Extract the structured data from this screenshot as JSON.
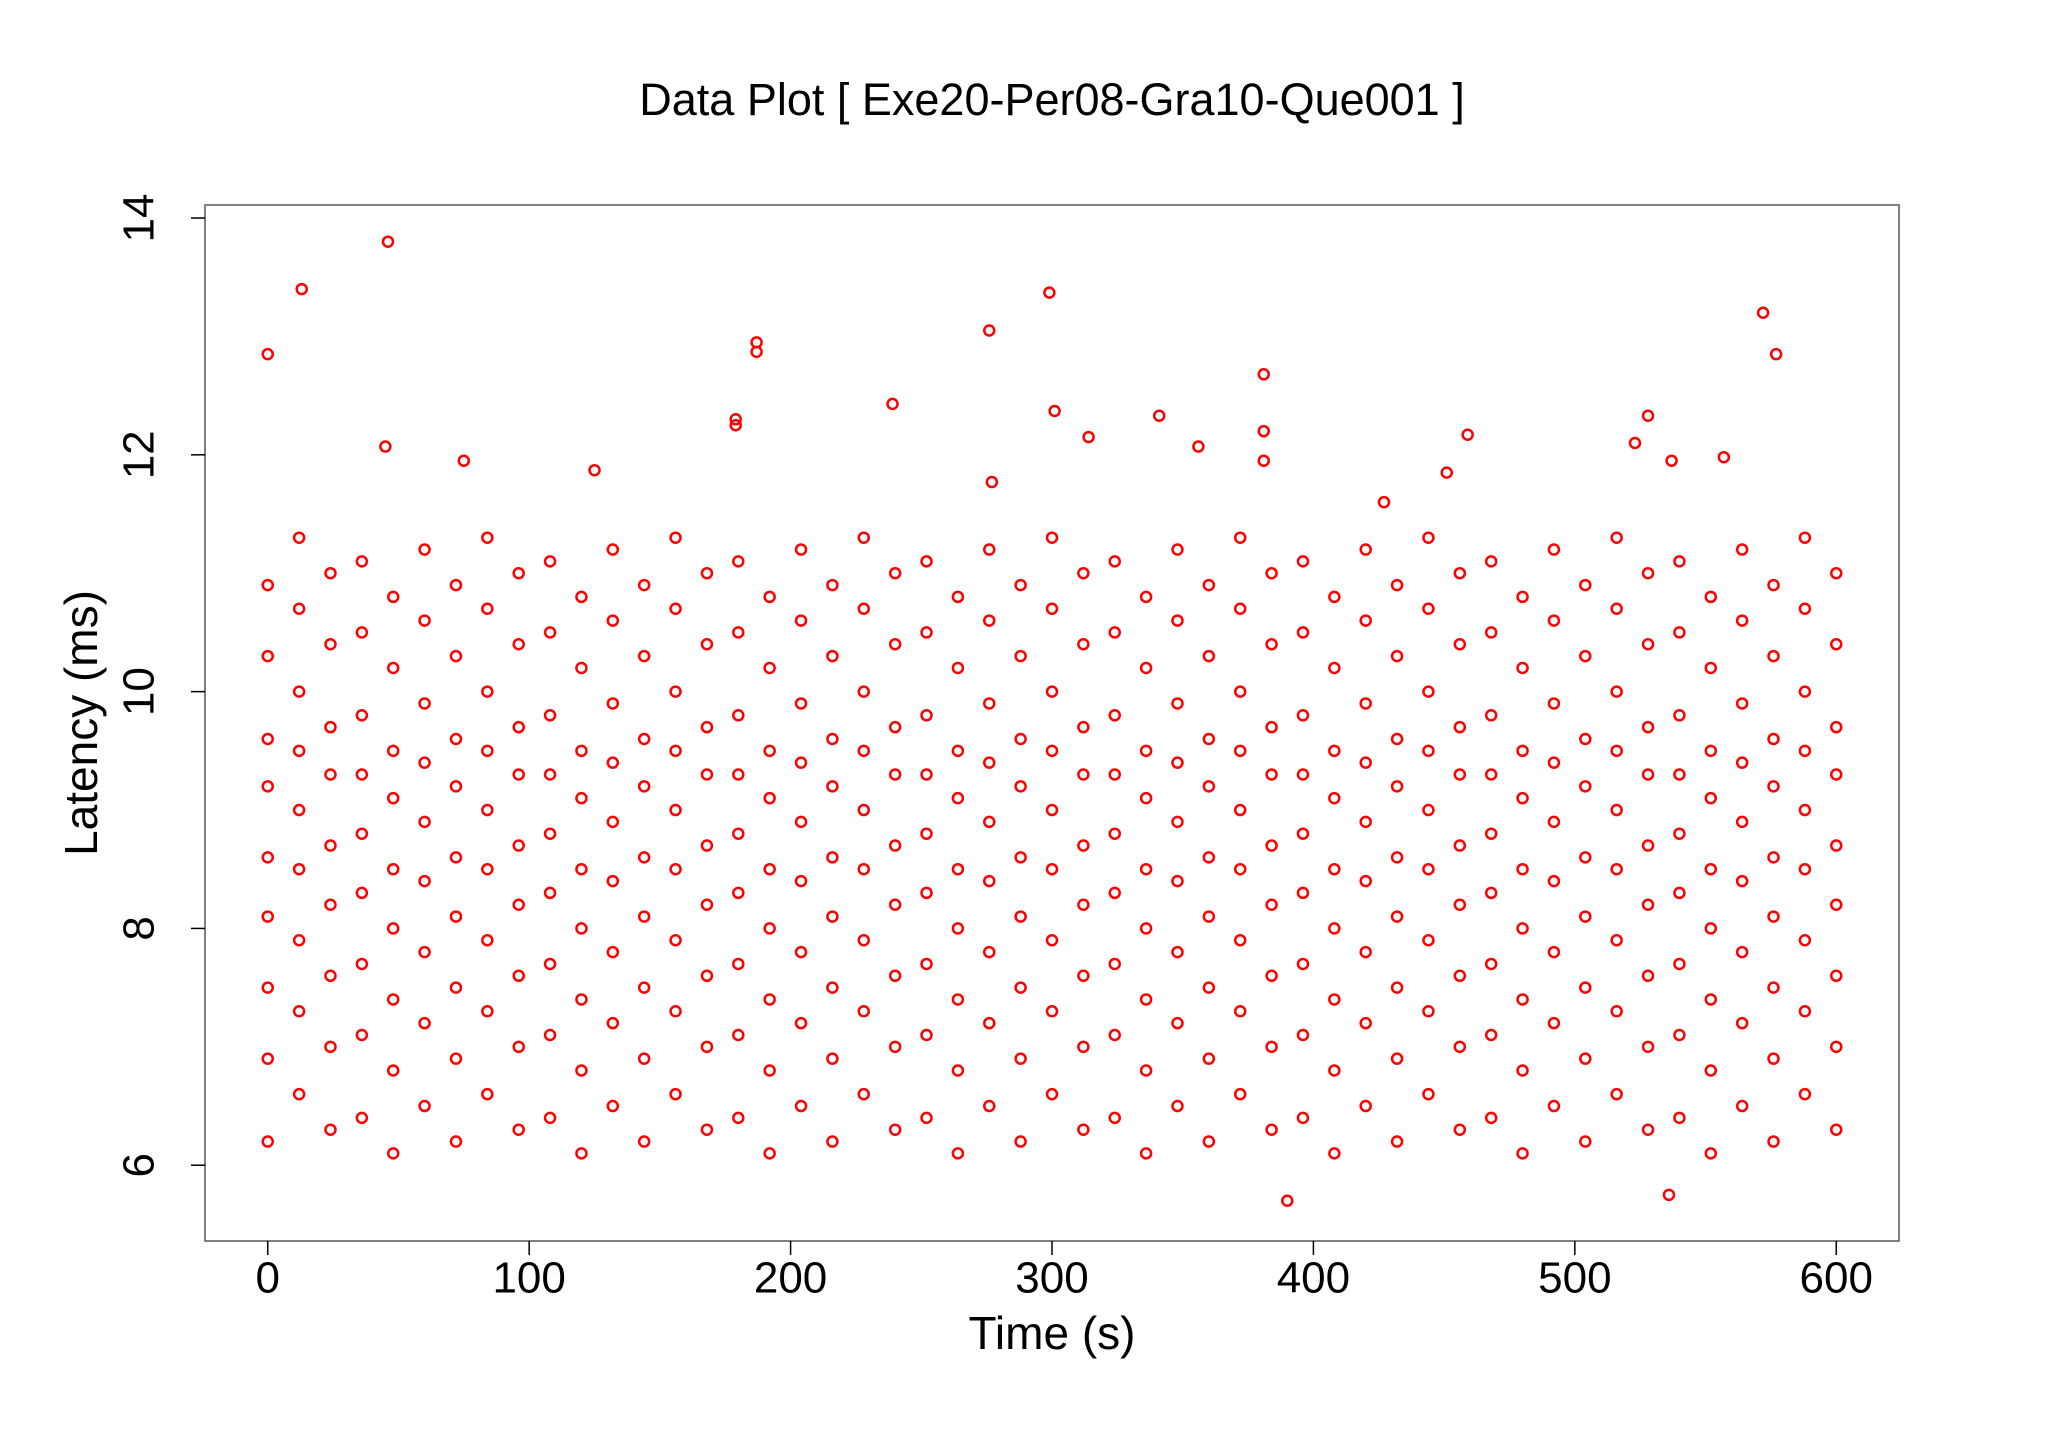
{
  "chart_data": {
    "type": "scatter",
    "title": "Data Plot [ Exe20-Per08-Gra10-Que001 ]",
    "x_label": "Time (s)",
    "y_label": "Latency (ms)",
    "color": "#ff0000",
    "xlim": [
      -24,
      624
    ],
    "ylim": [
      5.36,
      14.11
    ],
    "xticks": [
      0,
      100,
      200,
      300,
      400,
      500,
      600
    ],
    "yticks": [
      6,
      8,
      10,
      12,
      14
    ],
    "x": [
      0,
      0,
      0,
      0,
      0,
      0,
      0,
      0,
      0,
      24,
      24,
      24,
      24,
      24,
      24,
      24,
      24,
      24,
      48,
      48,
      48,
      48,
      48,
      48,
      48,
      48,
      48,
      72,
      72,
      72,
      72,
      72,
      72,
      72,
      72,
      72,
      96,
      96,
      96,
      96,
      96,
      96,
      96,
      96,
      96,
      120,
      120,
      120,
      120,
      120,
      120,
      120,
      120,
      120,
      144,
      144,
      144,
      144,
      144,
      144,
      144,
      144,
      144,
      168,
      168,
      168,
      168,
      168,
      168,
      168,
      168,
      168,
      192,
      192,
      192,
      192,
      192,
      192,
      192,
      192,
      192,
      216,
      216,
      216,
      216,
      216,
      216,
      216,
      216,
      216,
      240,
      240,
      240,
      240,
      240,
      240,
      240,
      240,
      240,
      264,
      264,
      264,
      264,
      264,
      264,
      264,
      264,
      264,
      288,
      288,
      288,
      288,
      288,
      288,
      288,
      288,
      288,
      312,
      312,
      312,
      312,
      312,
      312,
      312,
      312,
      312,
      336,
      336,
      336,
      336,
      336,
      336,
      336,
      336,
      336,
      360,
      360,
      360,
      360,
      360,
      360,
      360,
      360,
      360,
      384,
      384,
      384,
      384,
      384,
      384,
      384,
      384,
      384,
      408,
      408,
      408,
      408,
      408,
      408,
      408,
      408,
      408,
      432,
      432,
      432,
      432,
      432,
      432,
      432,
      432,
      432,
      456,
      456,
      456,
      456,
      456,
      456,
      456,
      456,
      456,
      480,
      480,
      480,
      480,
      480,
      480,
      480,
      480,
      480,
      504,
      504,
      504,
      504,
      504,
      504,
      504,
      504,
      504,
      528,
      528,
      528,
      528,
      528,
      528,
      528,
      528,
      528,
      552,
      552,
      552,
      552,
      552,
      552,
      552,
      552,
      552,
      576,
      576,
      576,
      576,
      576,
      576,
      576,
      576,
      576,
      600,
      600,
      600,
      600,
      600,
      600,
      600,
      600,
      600,
      12,
      12,
      12,
      12,
      12,
      12,
      12,
      12,
      12,
      36,
      36,
      36,
      36,
      36,
      36,
      36,
      36,
      36,
      60,
      60,
      60,
      60,
      60,
      60,
      60,
      60,
      60,
      84,
      84,
      84,
      84,
      84,
      84,
      84,
      84,
      84,
      108,
      108,
      108,
      108,
      108,
      108,
      108,
      108,
      108,
      132,
      132,
      132,
      132,
      132,
      132,
      132,
      132,
      132,
      156,
      156,
      156,
      156,
      156,
      156,
      156,
      156,
      156,
      180,
      180,
      180,
      180,
      180,
      180,
      180,
      180,
      180,
      204,
      204,
      204,
      204,
      204,
      204,
      204,
      204,
      204,
      228,
      228,
      228,
      228,
      228,
      228,
      228,
      228,
      228,
      252,
      252,
      252,
      252,
      252,
      252,
      252,
      252,
      252,
      276,
      276,
      276,
      276,
      276,
      276,
      276,
      276,
      276,
      300,
      300,
      300,
      300,
      300,
      300,
      300,
      300,
      300,
      324,
      324,
      324,
      324,
      324,
      324,
      324,
      324,
      324,
      348,
      348,
      348,
      348,
      348,
      348,
      348,
      348,
      348,
      372,
      372,
      372,
      372,
      372,
      372,
      372,
      372,
      372,
      396,
      396,
      396,
      396,
      396,
      396,
      396,
      396,
      396,
      420,
      420,
      420,
      420,
      420,
      420,
      420,
      420,
      420,
      444,
      444,
      444,
      444,
      444,
      444,
      444,
      444,
      444,
      468,
      468,
      468,
      468,
      468,
      468,
      468,
      468,
      468,
      492,
      492,
      492,
      492,
      492,
      492,
      492,
      492,
      492,
      516,
      516,
      516,
      516,
      516,
      516,
      516,
      516,
      516,
      540,
      540,
      540,
      540,
      540,
      540,
      540,
      540,
      540,
      564,
      564,
      564,
      564,
      564,
      564,
      564,
      564,
      564,
      588,
      588,
      588,
      588,
      588,
      588,
      588,
      588,
      588,
      0,
      13,
      46,
      45,
      75,
      125,
      179,
      179,
      187,
      187,
      239,
      276,
      277,
      299,
      301,
      314,
      341,
      356,
      381,
      381,
      381,
      390,
      427,
      451,
      459,
      528,
      523,
      537,
      557,
      572,
      577,
      536
    ],
    "values": [
      6.2,
      6.9,
      7.5,
      8.1,
      8.6,
      9.2,
      9.6,
      10.3,
      10.9,
      6.3,
      7,
      7.6,
      8.2,
      8.7,
      9.3,
      9.7,
      10.4,
      11,
      6.1,
      6.8,
      7.4,
      8,
      8.5,
      9.1,
      9.5,
      10.2,
      10.8,
      6.2,
      6.9,
      7.5,
      8.1,
      8.6,
      9.2,
      9.6,
      10.3,
      10.9,
      6.3,
      7,
      7.6,
      8.2,
      8.7,
      9.3,
      9.7,
      10.4,
      11,
      6.1,
      6.8,
      7.4,
      8,
      8.5,
      9.1,
      9.5,
      10.2,
      10.8,
      6.2,
      6.9,
      7.5,
      8.1,
      8.6,
      9.2,
      9.6,
      10.3,
      10.9,
      6.3,
      7,
      7.6,
      8.2,
      8.7,
      9.3,
      9.7,
      10.4,
      11,
      6.1,
      6.8,
      7.4,
      8,
      8.5,
      9.1,
      9.5,
      10.2,
      10.8,
      6.2,
      6.9,
      7.5,
      8.1,
      8.6,
      9.2,
      9.6,
      10.3,
      10.9,
      6.3,
      7,
      7.6,
      8.2,
      8.7,
      9.3,
      9.7,
      10.4,
      11,
      6.1,
      6.8,
      7.4,
      8,
      8.5,
      9.1,
      9.5,
      10.2,
      10.8,
      6.2,
      6.9,
      7.5,
      8.1,
      8.6,
      9.2,
      9.6,
      10.3,
      10.9,
      6.3,
      7,
      7.6,
      8.2,
      8.7,
      9.3,
      9.7,
      10.4,
      11,
      6.1,
      6.8,
      7.4,
      8,
      8.5,
      9.1,
      9.5,
      10.2,
      10.8,
      6.2,
      6.9,
      7.5,
      8.1,
      8.6,
      9.2,
      9.6,
      10.3,
      10.9,
      6.3,
      7,
      7.6,
      8.2,
      8.7,
      9.3,
      9.7,
      10.4,
      11,
      6.1,
      6.8,
      7.4,
      8,
      8.5,
      9.1,
      9.5,
      10.2,
      10.8,
      6.2,
      6.9,
      7.5,
      8.1,
      8.6,
      9.2,
      9.6,
      10.3,
      10.9,
      6.3,
      7,
      7.6,
      8.2,
      8.7,
      9.3,
      9.7,
      10.4,
      11,
      6.1,
      6.8,
      7.4,
      8,
      8.5,
      9.1,
      9.5,
      10.2,
      10.8,
      6.2,
      6.9,
      7.5,
      8.1,
      8.6,
      9.2,
      9.6,
      10.3,
      10.9,
      6.3,
      7,
      7.6,
      8.2,
      8.7,
      9.3,
      9.7,
      10.4,
      11,
      6.1,
      6.8,
      7.4,
      8,
      8.5,
      9.1,
      9.5,
      10.2,
      10.8,
      6.2,
      6.9,
      7.5,
      8.1,
      8.6,
      9.2,
      9.6,
      10.3,
      10.9,
      6.3,
      7,
      7.6,
      8.2,
      8.7,
      9.3,
      9.7,
      10.4,
      11,
      6.6,
      7.3,
      7.9,
      8.5,
      9,
      9.5,
      10,
      10.7,
      11.3,
      6.4,
      7.1,
      7.7,
      8.3,
      8.8,
      9.3,
      9.8,
      10.5,
      11.1,
      6.5,
      7.2,
      7.8,
      8.4,
      8.9,
      9.4,
      9.9,
      10.6,
      11.2,
      6.6,
      7.3,
      7.9,
      8.5,
      9,
      9.5,
      10,
      10.7,
      11.3,
      6.4,
      7.1,
      7.7,
      8.3,
      8.8,
      9.3,
      9.8,
      10.5,
      11.1,
      6.5,
      7.2,
      7.8,
      8.4,
      8.9,
      9.4,
      9.9,
      10.6,
      11.2,
      6.6,
      7.3,
      7.9,
      8.5,
      9,
      9.5,
      10,
      10.7,
      11.3,
      6.4,
      7.1,
      7.7,
      8.3,
      8.8,
      9.3,
      9.8,
      10.5,
      11.1,
      6.5,
      7.2,
      7.8,
      8.4,
      8.9,
      9.4,
      9.9,
      10.6,
      11.2,
      6.6,
      7.3,
      7.9,
      8.5,
      9,
      9.5,
      10,
      10.7,
      11.3,
      6.4,
      7.1,
      7.7,
      8.3,
      8.8,
      9.3,
      9.8,
      10.5,
      11.1,
      6.5,
      7.2,
      7.8,
      8.4,
      8.9,
      9.4,
      9.9,
      10.6,
      11.2,
      6.6,
      7.3,
      7.9,
      8.5,
      9,
      9.5,
      10,
      10.7,
      11.3,
      6.4,
      7.1,
      7.7,
      8.3,
      8.8,
      9.3,
      9.8,
      10.5,
      11.1,
      6.5,
      7.2,
      7.8,
      8.4,
      8.9,
      9.4,
      9.9,
      10.6,
      11.2,
      6.6,
      7.3,
      7.9,
      8.5,
      9,
      9.5,
      10,
      10.7,
      11.3,
      6.4,
      7.1,
      7.7,
      8.3,
      8.8,
      9.3,
      9.8,
      10.5,
      11.1,
      6.5,
      7.2,
      7.8,
      8.4,
      8.9,
      9.4,
      9.9,
      10.6,
      11.2,
      6.6,
      7.3,
      7.9,
      8.5,
      9,
      9.5,
      10,
      10.7,
      11.3,
      6.4,
      7.1,
      7.7,
      8.3,
      8.8,
      9.3,
      9.8,
      10.5,
      11.1,
      6.5,
      7.2,
      7.8,
      8.4,
      8.9,
      9.4,
      9.9,
      10.6,
      11.2,
      6.6,
      7.3,
      7.9,
      8.5,
      9,
      9.5,
      10,
      10.7,
      11.3,
      6.4,
      7.1,
      7.7,
      8.3,
      8.8,
      9.3,
      9.8,
      10.5,
      11.1,
      6.5,
      7.2,
      7.8,
      8.4,
      8.9,
      9.4,
      9.9,
      10.6,
      11.2,
      6.6,
      7.3,
      7.9,
      8.5,
      9,
      9.5,
      10,
      10.7,
      11.3,
      12.85,
      13.4,
      13.8,
      12.07,
      11.95,
      11.87,
      12.3,
      12.25,
      12.95,
      12.87,
      12.43,
      13.05,
      11.77,
      13.37,
      12.37,
      12.15,
      12.33,
      12.07,
      12.68,
      12.2,
      11.95,
      5.7,
      11.6,
      11.85,
      12.17,
      12.33,
      12.1,
      11.95,
      11.98,
      13.2,
      12.85,
      5.75
    ]
  }
}
